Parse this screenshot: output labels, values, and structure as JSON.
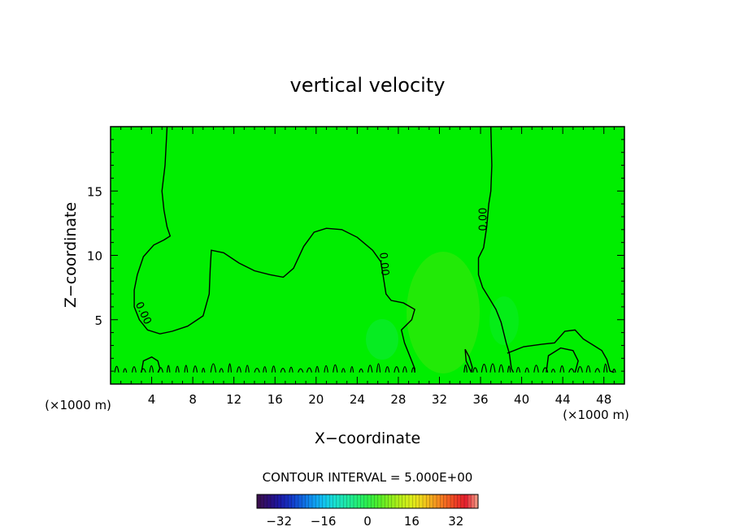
{
  "chart_data": {
    "type": "heatmap",
    "title": "vertical velocity",
    "xlabel": "X−coordinate",
    "ylabel": "Z−coordinate",
    "x_unit_label": "(×1000 m)",
    "y_unit_label": "(×1000 m)",
    "xlim": [
      0,
      50
    ],
    "ylim": [
      0,
      20
    ],
    "x_ticks": [
      4,
      8,
      12,
      16,
      20,
      24,
      28,
      32,
      36,
      40,
      44,
      48
    ],
    "y_ticks": [
      5,
      10,
      15
    ],
    "x_tick_labels": [
      "4",
      "8",
      "12",
      "16",
      "20",
      "24",
      "28",
      "32",
      "36",
      "40",
      "44",
      "48"
    ],
    "y_tick_labels": [
      "5",
      "10",
      "15"
    ],
    "field_fill_color": "#00ee00",
    "contour_interval_label": "CONTOUR INTERVAL = 5.000E+00",
    "contour_labels": [
      "0.00",
      "0.00",
      "0.00",
      "0.00"
    ],
    "colorbar": {
      "range": [
        -40,
        40
      ],
      "ticks": [
        -32,
        -16,
        0,
        16,
        32
      ],
      "tick_labels": [
        "−32",
        "−16",
        "0",
        "16",
        "32"
      ],
      "colors": [
        "#3a1050",
        "#2a0e7a",
        "#1a1aa8",
        "#1438c8",
        "#1066e0",
        "#1098f0",
        "#12c4f0",
        "#18e0d0",
        "#1ee8a8",
        "#22ee7a",
        "#2cee4c",
        "#50ee2a",
        "#86ee1e",
        "#b6ee1a",
        "#dcee1a",
        "#f0d41c",
        "#f4a41e",
        "#f47220",
        "#ee4424",
        "#e41c2c",
        "#f0907c"
      ]
    },
    "zero_contours": [
      {
        "name": "main",
        "points": [
          [
            5.5,
            20
          ],
          [
            5.3,
            17
          ],
          [
            5.0,
            15
          ],
          [
            5.2,
            13.5
          ],
          [
            5.5,
            12.2
          ],
          [
            5.8,
            11.5
          ],
          [
            5.2,
            11.2
          ],
          [
            4.2,
            10.8
          ],
          [
            3.2,
            9.9
          ],
          [
            2.6,
            8.5
          ],
          [
            2.3,
            7.3
          ],
          [
            2.3,
            6.0
          ],
          [
            2.8,
            5.0
          ],
          [
            3.6,
            4.2
          ],
          [
            4.8,
            3.9
          ],
          [
            6.0,
            4.1
          ],
          [
            7.5,
            4.5
          ],
          [
            9.0,
            5.3
          ],
          [
            9.6,
            7.0
          ],
          [
            9.7,
            9.0
          ],
          [
            9.8,
            10.4
          ],
          [
            11.0,
            10.2
          ],
          [
            12.5,
            9.4
          ],
          [
            14.0,
            8.8
          ],
          [
            15.5,
            8.5
          ],
          [
            16.8,
            8.3
          ],
          [
            17.8,
            9.0
          ],
          [
            18.8,
            10.7
          ],
          [
            19.8,
            11.8
          ],
          [
            21.0,
            12.1
          ],
          [
            22.5,
            12.0
          ],
          [
            24.0,
            11.4
          ],
          [
            25.5,
            10.4
          ],
          [
            26.3,
            9.5
          ],
          [
            26.5,
            8.5
          ],
          [
            26.8,
            7.0
          ],
          [
            27.3,
            6.5
          ],
          [
            28.5,
            6.3
          ],
          [
            29.6,
            5.8
          ],
          [
            29.3,
            5.0
          ],
          [
            28.3,
            4.2
          ],
          [
            28.6,
            3.2
          ],
          [
            29.2,
            2.0
          ],
          [
            29.6,
            1.2
          ],
          [
            29.6,
            0.9
          ]
        ]
      },
      {
        "name": "right",
        "points": [
          [
            37,
            20
          ],
          [
            37.1,
            17
          ],
          [
            37.0,
            15
          ],
          [
            36.8,
            14.0
          ],
          [
            36.6,
            12.2
          ],
          [
            36.3,
            10.6
          ],
          [
            35.8,
            9.8
          ],
          [
            35.8,
            8.5
          ],
          [
            36.2,
            7.5
          ],
          [
            36.9,
            6.6
          ],
          [
            37.5,
            5.8
          ],
          [
            38.0,
            4.8
          ],
          [
            38.5,
            3.2
          ],
          [
            38.8,
            2.4
          ],
          [
            39.0,
            1.2
          ],
          [
            39.2,
            0.9
          ]
        ]
      },
      {
        "name": "right-low",
        "points": [
          [
            38.6,
            2.4
          ],
          [
            40.2,
            2.9
          ],
          [
            42.0,
            3.1
          ],
          [
            43.2,
            3.2
          ],
          [
            44.2,
            4.1
          ],
          [
            45.2,
            4.2
          ],
          [
            46.0,
            3.5
          ],
          [
            47.0,
            3.0
          ],
          [
            47.8,
            2.6
          ],
          [
            48.3,
            1.9
          ],
          [
            48.6,
            1.0
          ],
          [
            49.0,
            0.9
          ]
        ]
      },
      {
        "name": "small-1",
        "points": [
          [
            35.1,
            0.9
          ],
          [
            34.6,
            1.8
          ],
          [
            34.5,
            2.7
          ],
          [
            34.9,
            2.1
          ],
          [
            35.2,
            1.3
          ],
          [
            35.1,
            0.9
          ]
        ]
      },
      {
        "name": "small-2",
        "points": [
          [
            3.0,
            0.9
          ],
          [
            3.2,
            1.8
          ],
          [
            4.0,
            2.1
          ],
          [
            4.6,
            1.8
          ],
          [
            4.8,
            1.2
          ],
          [
            4.6,
            0.9
          ]
        ]
      },
      {
        "name": "small-3",
        "points": [
          [
            42.4,
            0.9
          ],
          [
            42.6,
            2.2
          ],
          [
            43.8,
            2.8
          ],
          [
            45.0,
            2.6
          ],
          [
            45.5,
            1.8
          ],
          [
            45.2,
            0.9
          ]
        ]
      }
    ]
  }
}
